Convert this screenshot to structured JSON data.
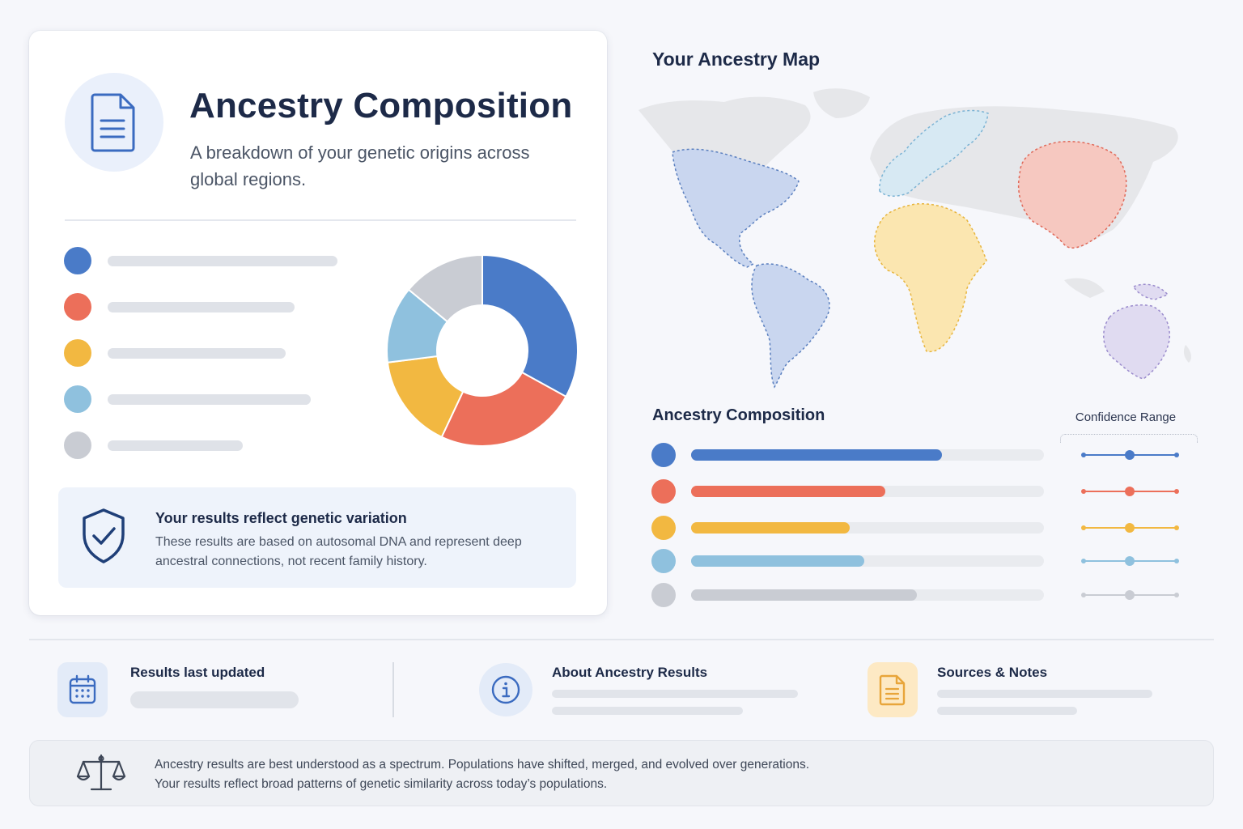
{
  "colors": {
    "blue": "#4a7bc8",
    "red": "#ec6f5a",
    "yellow": "#f2b841",
    "lightblue": "#8fc1de",
    "gray": "#c9ccd3"
  },
  "card": {
    "icon": "document-icon",
    "title": "Ancestry Composition",
    "subtitle": "A breakdown of your genetic origins across global regions.",
    "legend": [
      {
        "color": "blue"
      },
      {
        "color": "red"
      },
      {
        "color": "yellow"
      },
      {
        "color": "lightblue"
      },
      {
        "color": "gray"
      }
    ],
    "donut_segments": [
      {
        "color": "blue",
        "fraction": 0.33
      },
      {
        "color": "red",
        "fraction": 0.24
      },
      {
        "color": "yellow",
        "fraction": 0.16
      },
      {
        "color": "lightblue",
        "fraction": 0.13
      },
      {
        "color": "gray",
        "fraction": 0.14
      }
    ],
    "note": {
      "icon": "shield-check-icon",
      "title": "Your results reflect genetic variation",
      "text": "These results are based on autosomal DNA and represent deep ancestral connections, not recent family history."
    }
  },
  "map": {
    "title": "Your Ancestry Map",
    "highlighted_regions": [
      {
        "region": "North America",
        "color": "blue"
      },
      {
        "region": "South America",
        "color": "blue"
      },
      {
        "region": "Europe",
        "color": "lightblue"
      },
      {
        "region": "Africa",
        "color": "yellow"
      },
      {
        "region": "East Asia",
        "color": "red"
      },
      {
        "region": "Oceania",
        "color": "purple"
      }
    ]
  },
  "composition": {
    "title": "Ancestry Composition",
    "confidence_title": "Confidence Range",
    "rows": [
      {
        "color": "blue",
        "fill_fraction": 0.71
      },
      {
        "color": "red",
        "fill_fraction": 0.55
      },
      {
        "color": "yellow",
        "fill_fraction": 0.45
      },
      {
        "color": "lightblue",
        "fill_fraction": 0.49
      },
      {
        "color": "gray",
        "fill_fraction": 0.64
      }
    ]
  },
  "footer": {
    "updated": {
      "icon": "calendar-icon",
      "title": "Results last updated"
    },
    "about": {
      "icon": "info-icon",
      "title": "About Ancestry Results"
    },
    "sources": {
      "icon": "notes-document-icon",
      "title": "Sources & Notes"
    }
  },
  "disclaimer": {
    "icon": "scales-icon",
    "line1": "Ancestry results are best understood as a spectrum. Populations have shifted, merged, and evolved over generations.",
    "line2": "Your results reflect broad patterns of genetic similarity across today’s populations."
  }
}
